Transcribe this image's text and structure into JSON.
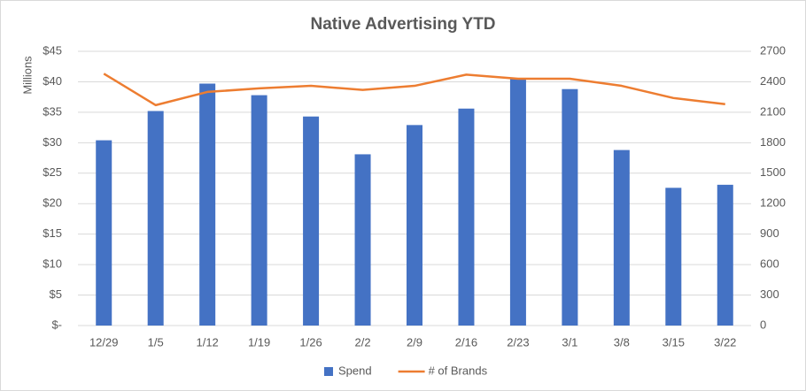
{
  "chart_data": {
    "type": "bar",
    "title": "Native Advertising YTD",
    "y_label": "Millions",
    "categories": [
      "12/29",
      "1/5",
      "1/12",
      "1/19",
      "1/26",
      "2/2",
      "2/9",
      "2/16",
      "2/23",
      "3/1",
      "3/8",
      "3/15",
      "3/22"
    ],
    "series": [
      {
        "name": "Spend",
        "type": "bar",
        "color": "#4472c4",
        "values": [
          30.4,
          35.2,
          39.7,
          37.8,
          34.3,
          28.1,
          32.9,
          35.6,
          40.5,
          38.8,
          28.8,
          22.6,
          23.1
        ]
      },
      {
        "name": "# of Brands",
        "type": "line",
        "axis": "y2",
        "color": "#ed7d31",
        "values": [
          2480,
          2170,
          2300,
          2335,
          2360,
          2320,
          2360,
          2470,
          2430,
          2430,
          2360,
          2240,
          2180
        ]
      }
    ],
    "ylim": [
      0,
      45
    ],
    "yticks": [
      {
        "value": 0,
        "label": "$-"
      },
      {
        "value": 5,
        "label": "$5"
      },
      {
        "value": 10,
        "label": "$10"
      },
      {
        "value": 15,
        "label": "$15"
      },
      {
        "value": 20,
        "label": "$20"
      },
      {
        "value": 25,
        "label": "$25"
      },
      {
        "value": 30,
        "label": "$30"
      },
      {
        "value": 35,
        "label": "$35"
      },
      {
        "value": 40,
        "label": "$40"
      },
      {
        "value": 45,
        "label": "$45"
      }
    ],
    "y2lim": [
      0,
      2700
    ],
    "y2ticks": [
      0,
      300,
      600,
      900,
      1200,
      1500,
      1800,
      2100,
      2400,
      2700
    ],
    "grid": true,
    "legend": "bottom"
  }
}
